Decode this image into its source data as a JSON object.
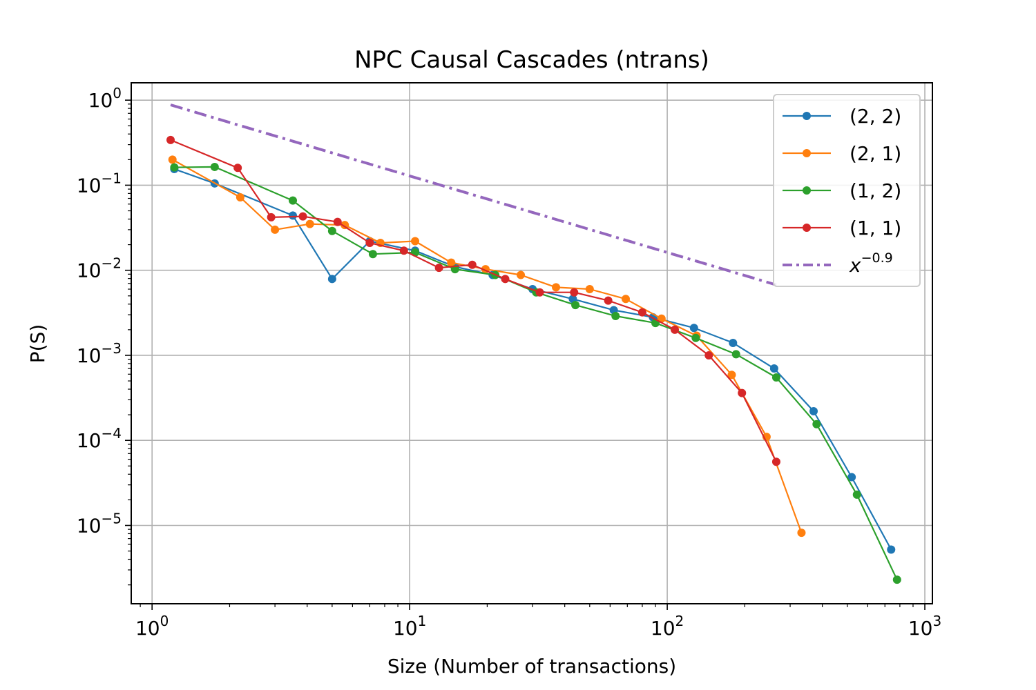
{
  "chart_data": {
    "type": "line",
    "title": "NPC Causal Cascades (ntrans)",
    "xlabel": "Size (Number of transactions)",
    "ylabel": "P(S)",
    "xscale": "log",
    "yscale": "log",
    "xlim": [
      0.83,
      1070
    ],
    "ylim": [
      1.2e-06,
      1.6
    ],
    "grid": true,
    "legend_position": "top-right",
    "x_ticks": [
      {
        "value": 1,
        "base": "10",
        "exp": "0"
      },
      {
        "value": 10,
        "base": "10",
        "exp": "1"
      },
      {
        "value": 100,
        "base": "10",
        "exp": "2"
      },
      {
        "value": 1000,
        "base": "10",
        "exp": "3"
      }
    ],
    "y_ticks": [
      {
        "value": 1,
        "base": "10",
        "exp": "0"
      },
      {
        "value": 0.1,
        "base": "10",
        "exp": "−1"
      },
      {
        "value": 0.01,
        "base": "10",
        "exp": "−2"
      },
      {
        "value": 0.001,
        "base": "10",
        "exp": "−3"
      },
      {
        "value": 0.0001,
        "base": "10",
        "exp": "−4"
      },
      {
        "value": 1e-05,
        "base": "10",
        "exp": "−5"
      }
    ],
    "series": [
      {
        "name": "(2, 2)",
        "color": "#1f77b4",
        "marker": "circle",
        "x": [
          1.22,
          1.75,
          3.52,
          5.0,
          7.0,
          10.5,
          15.0,
          21.0,
          30.0,
          43.0,
          62.0,
          88.0,
          127.0,
          180.0,
          260.0,
          370.0,
          520.0,
          740.0
        ],
        "y": [
          0.155,
          0.105,
          0.044,
          0.0079,
          0.022,
          0.017,
          0.011,
          0.0088,
          0.006,
          0.0046,
          0.0034,
          0.0028,
          0.0021,
          0.0014,
          0.0007,
          0.00022,
          3.7e-05,
          5.2e-06
        ]
      },
      {
        "name": "(2, 1)",
        "color": "#ff7f0e",
        "marker": "circle",
        "x": [
          1.2,
          2.2,
          3.0,
          4.1,
          5.6,
          7.7,
          10.5,
          14.5,
          19.7,
          27.0,
          37.0,
          50.0,
          69.0,
          95.0,
          130.0,
          178.0,
          243.0,
          332.0
        ],
        "y": [
          0.2,
          0.072,
          0.03,
          0.035,
          0.034,
          0.021,
          0.022,
          0.0123,
          0.0103,
          0.0088,
          0.0063,
          0.006,
          0.0046,
          0.0027,
          0.0017,
          0.00059,
          0.00011,
          8.2e-06
        ]
      },
      {
        "name": "(1, 2)",
        "color": "#2ca02c",
        "marker": "circle",
        "x": [
          1.22,
          1.75,
          3.52,
          5.0,
          7.2,
          10.5,
          15.0,
          21.5,
          31.0,
          44.0,
          63.0,
          90.0,
          129.0,
          185.0,
          265.0,
          380.0,
          545.0,
          780.0
        ],
        "y": [
          0.162,
          0.164,
          0.066,
          0.029,
          0.0155,
          0.0162,
          0.0103,
          0.0088,
          0.0055,
          0.0039,
          0.0029,
          0.0024,
          0.0016,
          0.00103,
          0.00055,
          0.000155,
          2.3e-05,
          2.3e-06
        ]
      },
      {
        "name": "(1, 1)",
        "color": "#d62728",
        "marker": "circle",
        "x": [
          1.18,
          2.15,
          2.9,
          3.85,
          5.25,
          7.0,
          9.5,
          13.0,
          17.5,
          23.5,
          32.0,
          43.5,
          59.0,
          80.0,
          107.0,
          145.0,
          195.0,
          265.0
        ],
        "y": [
          0.34,
          0.16,
          0.042,
          0.043,
          0.037,
          0.021,
          0.017,
          0.0107,
          0.0116,
          0.0079,
          0.0055,
          0.0055,
          0.0044,
          0.0032,
          0.002,
          0.001,
          0.00036,
          5.6e-05
        ]
      }
    ],
    "reference_line": {
      "label_base": "x",
      "label_exp": "−0.9",
      "color": "#9467bd",
      "style": "dash-dot",
      "exponent": -0.9,
      "x_range": [
        1.18,
        265
      ]
    }
  }
}
